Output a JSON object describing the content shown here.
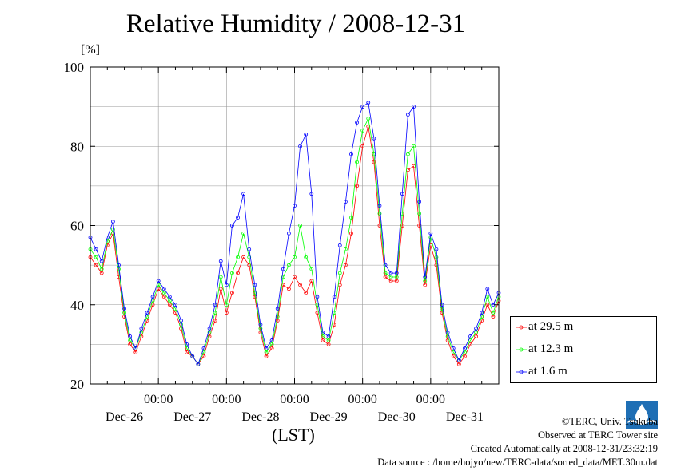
{
  "chart_data": {
    "type": "line",
    "title": "Relative Humidity / 2008-12-31",
    "ylabel": "[%]",
    "xlabel": "(LST)",
    "ylim": [
      20,
      100
    ],
    "yticks": [
      20,
      40,
      60,
      80,
      100
    ],
    "xlim_hours": [
      0,
      144
    ],
    "day_labels": [
      "Dec-26",
      "Dec-27",
      "Dec-28",
      "Dec-29",
      "Dec-30",
      "Dec-31"
    ],
    "midnight_label": "00:00",
    "grid": true,
    "legend_position": "right-bottom",
    "series": [
      {
        "name": "at 29.5 m",
        "color": "#ff0000",
        "x_hours": [
          0,
          2,
          4,
          6,
          8,
          10,
          12,
          14,
          16,
          18,
          20,
          22,
          24,
          26,
          28,
          30,
          32,
          34,
          36,
          38,
          40,
          42,
          44,
          46,
          48,
          50,
          52,
          54,
          56,
          58,
          60,
          62,
          64,
          66,
          68,
          70,
          72,
          74,
          76,
          78,
          80,
          82,
          84,
          86,
          88,
          90,
          92,
          94,
          96,
          98,
          100,
          102,
          104,
          106,
          108,
          110,
          112,
          114,
          116,
          118,
          120,
          122,
          124,
          126,
          128,
          130,
          132,
          134,
          136,
          138,
          140,
          142,
          144
        ],
        "values": [
          52,
          50,
          48,
          55,
          58,
          47,
          37,
          30,
          28,
          32,
          36,
          40,
          44,
          42,
          40,
          38,
          34,
          28,
          27,
          25,
          27,
          32,
          36,
          44,
          38,
          43,
          48,
          52,
          50,
          42,
          33,
          27,
          29,
          36,
          45,
          44,
          47,
          45,
          43,
          46,
          38,
          31,
          30,
          35,
          45,
          50,
          58,
          70,
          80,
          85,
          76,
          60,
          47,
          46,
          46,
          60,
          74,
          75,
          60,
          45,
          55,
          50,
          38,
          31,
          27,
          25,
          27,
          30,
          32,
          36,
          40,
          37,
          41
        ]
      },
      {
        "name": "at 12.3 m",
        "color": "#00ff00",
        "x_hours": [
          0,
          2,
          4,
          6,
          8,
          10,
          12,
          14,
          16,
          18,
          20,
          22,
          24,
          26,
          28,
          30,
          32,
          34,
          36,
          38,
          40,
          42,
          44,
          46,
          48,
          50,
          52,
          54,
          56,
          58,
          60,
          62,
          64,
          66,
          68,
          70,
          72,
          74,
          76,
          78,
          80,
          82,
          84,
          86,
          88,
          90,
          92,
          94,
          96,
          98,
          100,
          102,
          104,
          106,
          108,
          110,
          112,
          114,
          116,
          118,
          120,
          122,
          124,
          126,
          128,
          130,
          132,
          134,
          136,
          138,
          140,
          142,
          144
        ],
        "values": [
          54,
          52,
          49,
          56,
          59,
          49,
          38,
          31,
          29,
          33,
          37,
          41,
          45,
          43,
          41,
          39,
          35,
          29,
          27,
          25,
          28,
          33,
          38,
          47,
          40,
          48,
          52,
          58,
          52,
          43,
          34,
          28,
          30,
          37,
          47,
          50,
          52,
          60,
          52,
          49,
          40,
          32,
          31,
          38,
          48,
          54,
          62,
          76,
          84,
          87,
          78,
          63,
          48,
          47,
          47,
          63,
          78,
          80,
          63,
          46,
          57,
          52,
          39,
          32,
          28,
          26,
          28,
          31,
          33,
          37,
          42,
          38,
          42
        ]
      },
      {
        "name": "at 1.6 m",
        "color": "#0000ff",
        "x_hours": [
          0,
          2,
          4,
          6,
          8,
          10,
          12,
          14,
          16,
          18,
          20,
          22,
          24,
          26,
          28,
          30,
          32,
          34,
          36,
          38,
          40,
          42,
          44,
          46,
          48,
          50,
          52,
          54,
          56,
          58,
          60,
          62,
          64,
          66,
          68,
          70,
          72,
          74,
          76,
          78,
          80,
          82,
          84,
          86,
          88,
          90,
          92,
          94,
          96,
          98,
          100,
          102,
          104,
          106,
          108,
          110,
          112,
          114,
          116,
          118,
          120,
          122,
          124,
          126,
          128,
          130,
          132,
          134,
          136,
          138,
          140,
          142,
          144
        ],
        "values": [
          57,
          54,
          51,
          57,
          61,
          50,
          39,
          32,
          29,
          34,
          38,
          42,
          46,
          44,
          42,
          40,
          36,
          30,
          27,
          25,
          29,
          34,
          40,
          51,
          45,
          60,
          62,
          68,
          54,
          45,
          35,
          29,
          31,
          39,
          49,
          58,
          65,
          80,
          83,
          68,
          42,
          33,
          32,
          42,
          55,
          66,
          78,
          86,
          90,
          91,
          82,
          65,
          50,
          48,
          48,
          68,
          88,
          90,
          66,
          47,
          58,
          54,
          40,
          33,
          29,
          26,
          29,
          32,
          34,
          38,
          44,
          40,
          43
        ]
      }
    ]
  },
  "credits": {
    "copyright": "©TERC, Univ. Tsukuba",
    "observed": "Observed at TERC Tower site",
    "created": "Created Automatically at 2008-12-31/23:32:19",
    "source": "Data source : /home/hojyo/new/TERC-data/sorted_data/MET.30m.dat"
  }
}
